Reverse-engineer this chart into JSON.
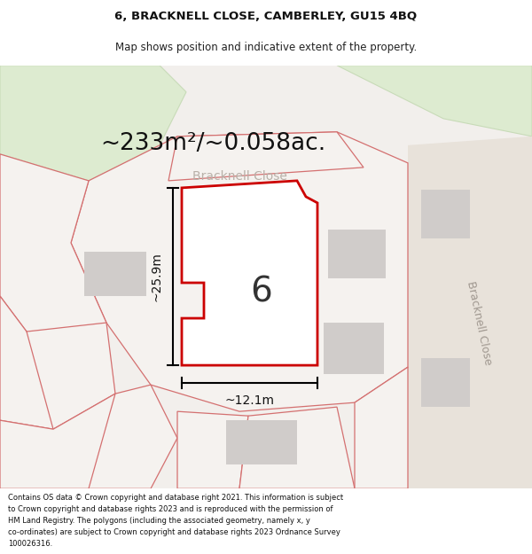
{
  "title_line1": "6, BRACKNELL CLOSE, CAMBERLEY, GU15 4BQ",
  "title_line2": "Map shows position and indicative extent of the property.",
  "area_text": "~233m²/~0.058ac.",
  "width_label": "~12.1m",
  "height_label": "~25.9m",
  "number_label": "6",
  "road_label": "Bracknell Close",
  "footer_lines": [
    "Contains OS data © Crown copyright and database right 2021. This information is subject",
    "to Crown copyright and database rights 2023 and is reproduced with the permission of",
    "HM Land Registry. The polygons (including the associated geometry, namely x, y",
    "co-ordinates) are subject to Crown copyright and database rights 2023 Ordnance Survey",
    "100026316."
  ],
  "map_bg": "#f2efec",
  "plot_edge": "#cc0000",
  "neighbor_edge": "#d47070",
  "building_fill": "#d0ccca",
  "green_fill": "#ddebd0",
  "road_fill": "#e8e4de"
}
